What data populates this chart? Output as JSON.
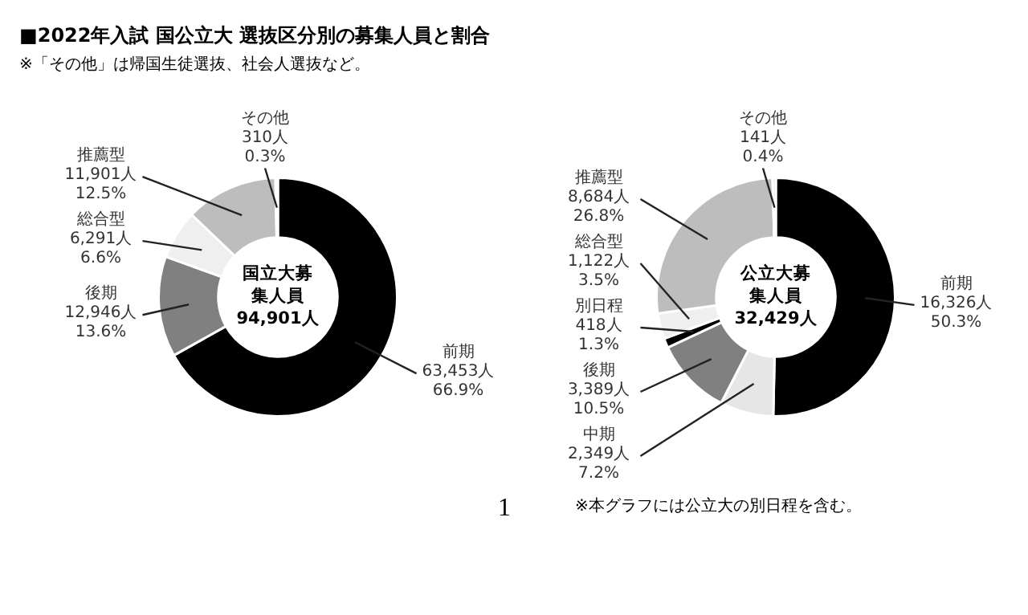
{
  "chart_data": [
    {
      "type": "donut",
      "title": "■2022年入試 国公立大 選抜区分別の募集人員と割合",
      "subtitle": "※「その他」は帰国生徒選抜、社会人選抜など。",
      "categories": [
        "前期",
        "後期",
        "総合型",
        "推薦型",
        "その他"
      ],
      "values": [
        63453,
        12946,
        6291,
        11901,
        310
      ],
      "colors": [
        "#000000",
        "#808080",
        "#efefef",
        "#bdbdbd",
        "#e4e4e4"
      ],
      "value_labels": [
        "63,453人\n66.9%",
        "12,946人\n13.6%",
        "6,291人\n6.6%",
        "11,901人\n12.5%",
        "310人\n0.3%"
      ],
      "annotations": [
        "国立大募集人員",
        "94,901人",
        "1"
      ]
    },
    {
      "type": "donut",
      "categories": [
        "前期",
        "中期",
        "後期",
        "別日程",
        "総合型",
        "推薦型",
        "その他"
      ],
      "values": [
        16326,
        2349,
        3389,
        418,
        1122,
        8684,
        141
      ],
      "colors": [
        "#000000",
        "#e6e6e6",
        "#808080",
        "#000000",
        "#efefef",
        "#bdbdbd",
        "#e4e4e4"
      ],
      "value_labels": [
        "16,326人\n50.3%",
        "2,349人\n7.2%",
        "3,389人\n10.5%",
        "418人\n1.3%",
        "1,122人\n3.5%",
        "8,684人\n26.8%",
        "141人\n0.4%"
      ],
      "annotations": [
        "公立大募集人員",
        "32,429人",
        "※本グラフには公立大の別日程を含む。"
      ]
    }
  ]
}
